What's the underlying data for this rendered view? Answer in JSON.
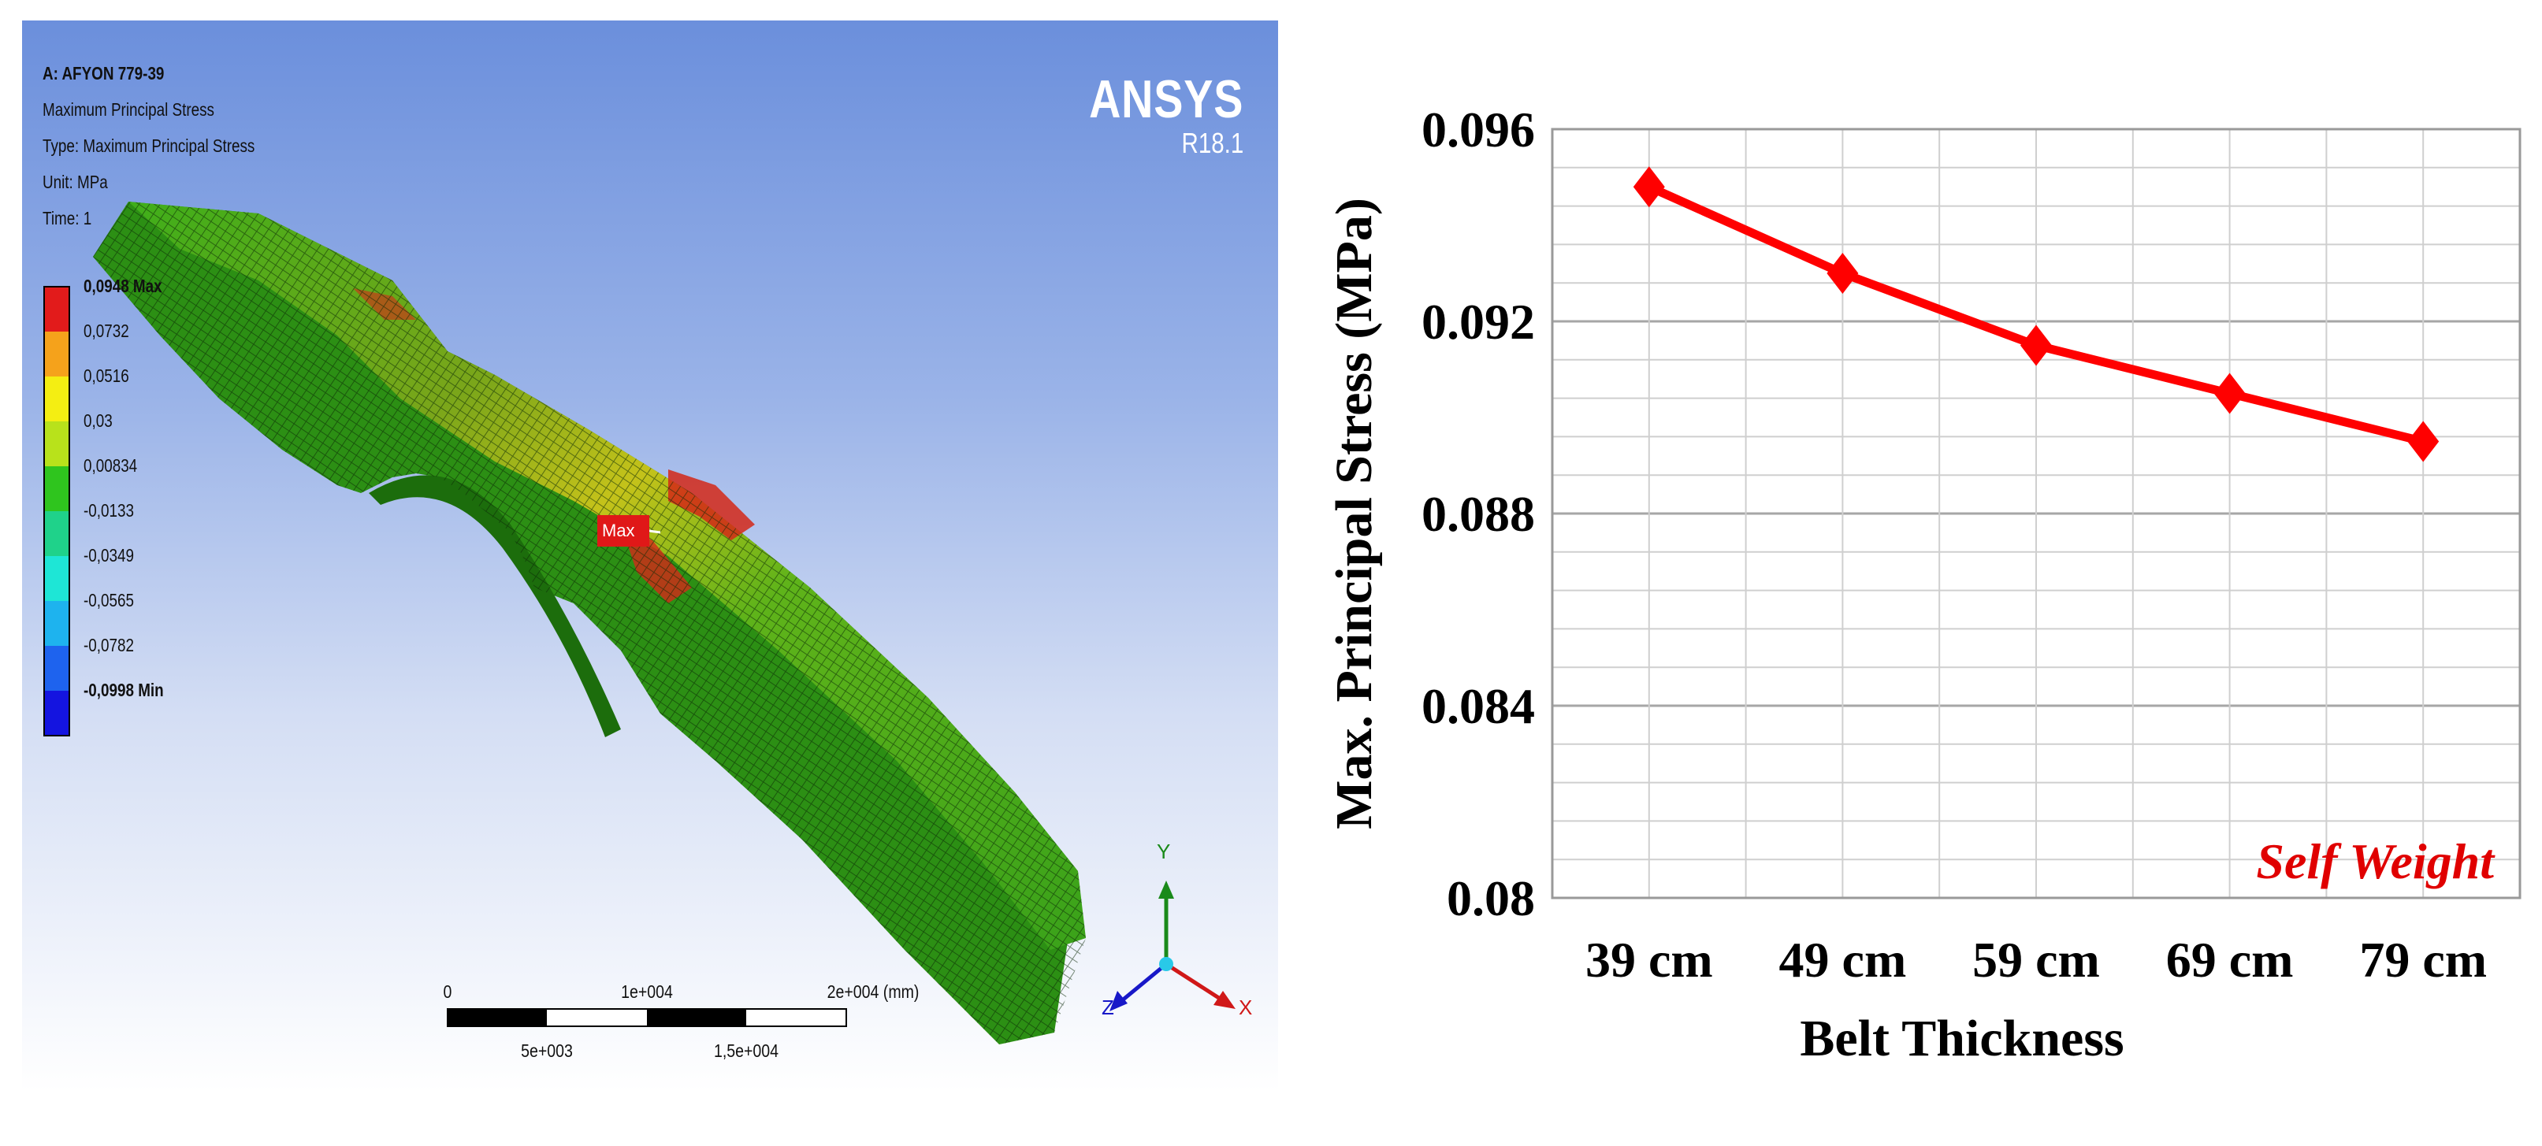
{
  "fea_view": {
    "title": "A: AFYON 779-39",
    "result_name": "Maximum Principal Stress",
    "type_line": "Type: Maximum Principal Stress",
    "unit_line": "Unit: MPa",
    "time_line": "Time: 1",
    "logo": {
      "name": "ANSYS",
      "version": "R18.1"
    },
    "legend": [
      {
        "label": "0,0948 Max",
        "color": "#e21b1b"
      },
      {
        "label": "0,0732",
        "color": "#f5a21b"
      },
      {
        "label": "0,0516",
        "color": "#f4ee12"
      },
      {
        "label": "0,03",
        "color": "#b8e21b"
      },
      {
        "label": "0,00834",
        "color": "#2fc51e"
      },
      {
        "label": "-0,0133",
        "color": "#1fd28a"
      },
      {
        "label": "-0,0349",
        "color": "#1ee6d6"
      },
      {
        "label": "-0,0565",
        "color": "#1eb3ee"
      },
      {
        "label": "-0,0782",
        "color": "#1e63ee"
      },
      {
        "label": "-0,0998 Min",
        "color": "#1414e0"
      }
    ],
    "max_probe_label": "Max",
    "scale_bar": {
      "top_labels": [
        "0",
        "1e+004",
        "2e+004 (mm)"
      ],
      "bottom_labels": [
        "5e+003",
        "1,5e+004"
      ]
    },
    "triad": {
      "y": "Y",
      "x": "X",
      "z": "Z"
    }
  },
  "chart_data": {
    "type": "line",
    "categories": [
      "39 cm",
      "49 cm",
      "59 cm",
      "69 cm",
      "79 cm"
    ],
    "series": [
      {
        "values": [
          0.0948,
          0.093,
          0.0915,
          0.0905,
          0.0895
        ],
        "color": "#ff0000",
        "marker": "diamond"
      }
    ],
    "xlabel": "Belt Thickness",
    "ylabel": "Max. Principal Stress (MPa)",
    "ylim": [
      0.08,
      0.096
    ],
    "yticks": [
      0.08,
      0.084,
      0.088,
      0.092,
      0.096
    ],
    "ytick_labels": [
      "0.08",
      "0.084",
      "0.088",
      "0.092",
      "0.096"
    ],
    "annotation": "Self Weight",
    "grid": true
  }
}
